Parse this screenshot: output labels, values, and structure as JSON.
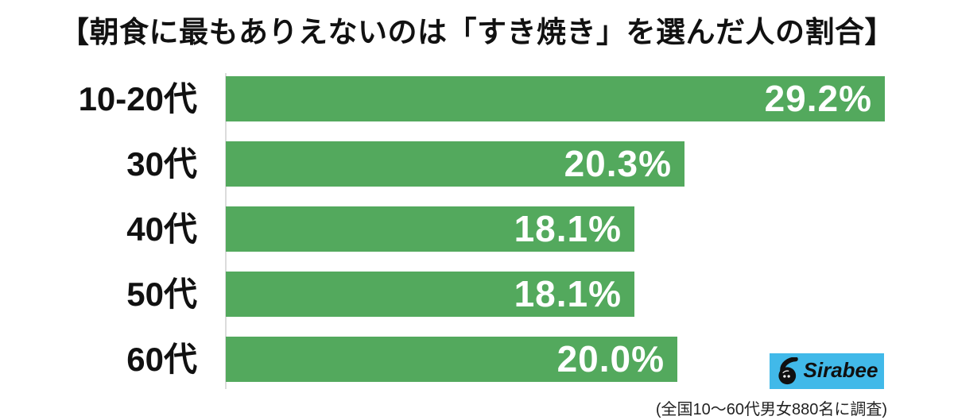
{
  "chart_data": {
    "type": "bar",
    "orientation": "horizontal",
    "title": "【朝食に最もありえないのは「すき焼き」を選んだ人の割合】",
    "categories": [
      "10-20代",
      "30代",
      "40代",
      "50代",
      "60代"
    ],
    "values": [
      29.2,
      20.3,
      18.1,
      18.1,
      20.0
    ],
    "value_labels": [
      "29.2%",
      "20.3%",
      "18.1%",
      "18.1%",
      "20.0%"
    ],
    "unit": "%",
    "xlim": [
      0,
      32
    ],
    "grid": false,
    "legend": "none",
    "bar_color": "#53a95d",
    "value_label_color": "#ffffff",
    "value_label_position": "inside-end",
    "annotation": "(全国10〜60代男女880名に調査)"
  },
  "branding": {
    "logo_text": "Sirabee",
    "logo_bg_color": "#41b9e9",
    "logo_mark_color": "#101010"
  }
}
